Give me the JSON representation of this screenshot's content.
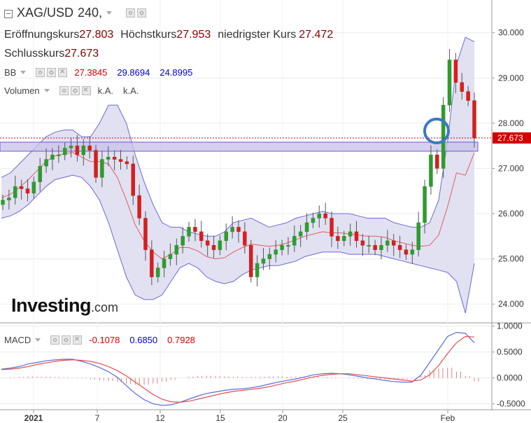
{
  "header": {
    "symbol": "XAG/USD",
    "interval": "240,",
    "open_label": "Eröffnungskurs",
    "open_value": "27.803",
    "high_label": "Höchstkurs",
    "high_value": "27.953",
    "low_label": "niedrigster Kurs",
    "low_value": "27.472",
    "close_label": "Schlusskurs",
    "close_value": "27.673"
  },
  "indicators": {
    "bb": {
      "label": "BB",
      "v1": "27.3845",
      "v2": "29.8694",
      "v3": "24.8995",
      "c1": "#d40000",
      "c2": "#0000c8",
      "c3": "#0000c8"
    },
    "volume": {
      "label": "Volumen",
      "v1": "k.A.",
      "v2": "k.A."
    },
    "macd": {
      "label": "MACD",
      "v1": "-0.1078",
      "v2": "0.6850",
      "v3": "0.7928",
      "c1": "#d40000",
      "c2": "#0000c8",
      "c3": "#d40000"
    }
  },
  "logo": {
    "main": "Investing",
    "suffix": ".com"
  },
  "chart_data": [
    {
      "type": "candlestick",
      "ylim": [
        23.6,
        30.6
      ],
      "y_ticks": [
        "30.000",
        "29.000",
        "28.000",
        "27.000",
        "26.000",
        "25.000",
        "24.000"
      ],
      "last_price_label": "27.673",
      "x_ticks": [
        "2021",
        "7",
        "12",
        "15",
        "20",
        "25",
        "Feb"
      ],
      "colors": {
        "up": "#2e9b2e",
        "down": "#d42020",
        "bb_fill": "#dcdcf0",
        "bb_band": "#6a6ad8",
        "bb_mid": "#e06060",
        "zone": "#c8c0e8"
      },
      "support_zone": [
        27.38,
        27.58
      ],
      "close": [
        26.3,
        26.35,
        26.6,
        26.55,
        26.45,
        26.7,
        27.05,
        27.2,
        27.3,
        27.3,
        27.45,
        27.5,
        27.3,
        27.5,
        27.4,
        26.8,
        27.2,
        27.25,
        27.2,
        27.15,
        27.1,
        26.4,
        25.9,
        25.2,
        24.6,
        24.8,
        25.0,
        25.1,
        25.3,
        25.5,
        25.7,
        25.6,
        25.4,
        25.3,
        25.2,
        25.4,
        25.6,
        25.7,
        25.6,
        25.3,
        24.6,
        24.9,
        25.0,
        25.1,
        25.2,
        25.3,
        25.3,
        25.5,
        25.6,
        25.8,
        25.9,
        26.0,
        25.9,
        25.5,
        25.4,
        25.5,
        25.6,
        25.4,
        25.3,
        25.3,
        25.2,
        25.3,
        25.4,
        25.3,
        25.2,
        25.1,
        25.2,
        25.8,
        26.6,
        27.3,
        27.0,
        28.4,
        29.4,
        28.9,
        28.7,
        28.5,
        27.67
      ],
      "bb": {
        "upper": [
          26.8,
          26.9,
          27.1,
          27.3,
          27.5,
          27.7,
          27.8,
          27.85,
          27.85,
          27.7,
          27.7,
          28.0,
          28.4,
          28.4,
          28.0,
          27.3,
          26.7,
          26.2,
          25.8,
          25.7,
          25.7,
          25.6,
          25.55,
          25.5,
          25.5,
          25.6,
          25.8,
          25.85,
          25.9,
          25.8,
          25.7,
          25.75,
          25.8,
          25.9,
          25.95,
          26.0,
          26.05,
          26.0,
          26.0,
          26.0,
          25.95,
          25.9,
          25.9,
          25.9,
          25.8,
          25.75,
          25.7,
          25.7,
          25.8,
          26.3,
          27.6,
          29.3,
          29.9,
          29.8
        ],
        "lower": [
          25.9,
          25.95,
          26.05,
          26.2,
          26.4,
          26.6,
          26.75,
          26.8,
          26.85,
          26.8,
          26.6,
          26.3,
          25.8,
          25.2,
          24.6,
          24.2,
          24.1,
          24.1,
          24.2,
          24.5,
          24.8,
          24.9,
          24.8,
          24.6,
          24.5,
          24.45,
          24.5,
          24.65,
          24.75,
          24.8,
          24.85,
          24.85,
          24.9,
          24.95,
          25.05,
          25.1,
          25.15,
          25.15,
          25.15,
          25.1,
          25.1,
          25.1,
          25.1,
          25.05,
          25.0,
          24.95,
          24.9,
          24.85,
          24.8,
          24.75,
          24.7,
          24.5,
          23.8,
          24.9
        ]
      }
    },
    {
      "type": "macd",
      "ylim": [
        -0.6,
        1.05
      ],
      "y_ticks": [
        "1.0000",
        "0.5000",
        "0.0000",
        "-0.5000"
      ],
      "macd": [
        0.17,
        0.19,
        0.22,
        0.27,
        0.3,
        0.33,
        0.35,
        0.36,
        0.36,
        0.32,
        0.27,
        0.2,
        0.12,
        0.01,
        -0.15,
        -0.3,
        -0.42,
        -0.5,
        -0.53,
        -0.52,
        -0.47,
        -0.41,
        -0.35,
        -0.3,
        -0.27,
        -0.24,
        -0.22,
        -0.21,
        -0.19,
        -0.16,
        -0.12,
        -0.08,
        -0.05,
        -0.02,
        0.02,
        0.06,
        0.08,
        0.09,
        0.08,
        0.06,
        0.03,
        0.0,
        -0.02,
        -0.05,
        -0.07,
        -0.08,
        -0.08,
        0.05,
        0.3,
        0.55,
        0.8,
        0.88,
        0.86,
        0.68
      ],
      "signal": [
        0.16,
        0.17,
        0.19,
        0.22,
        0.26,
        0.29,
        0.32,
        0.34,
        0.35,
        0.34,
        0.32,
        0.28,
        0.22,
        0.14,
        0.04,
        -0.08,
        -0.2,
        -0.32,
        -0.41,
        -0.46,
        -0.47,
        -0.45,
        -0.41,
        -0.37,
        -0.33,
        -0.29,
        -0.26,
        -0.24,
        -0.22,
        -0.2,
        -0.17,
        -0.13,
        -0.09,
        -0.06,
        -0.02,
        0.02,
        0.05,
        0.07,
        0.08,
        0.08,
        0.06,
        0.04,
        0.02,
        0.0,
        -0.02,
        -0.04,
        -0.06,
        -0.04,
        0.06,
        0.24,
        0.47,
        0.68,
        0.8,
        0.79
      ]
    }
  ]
}
